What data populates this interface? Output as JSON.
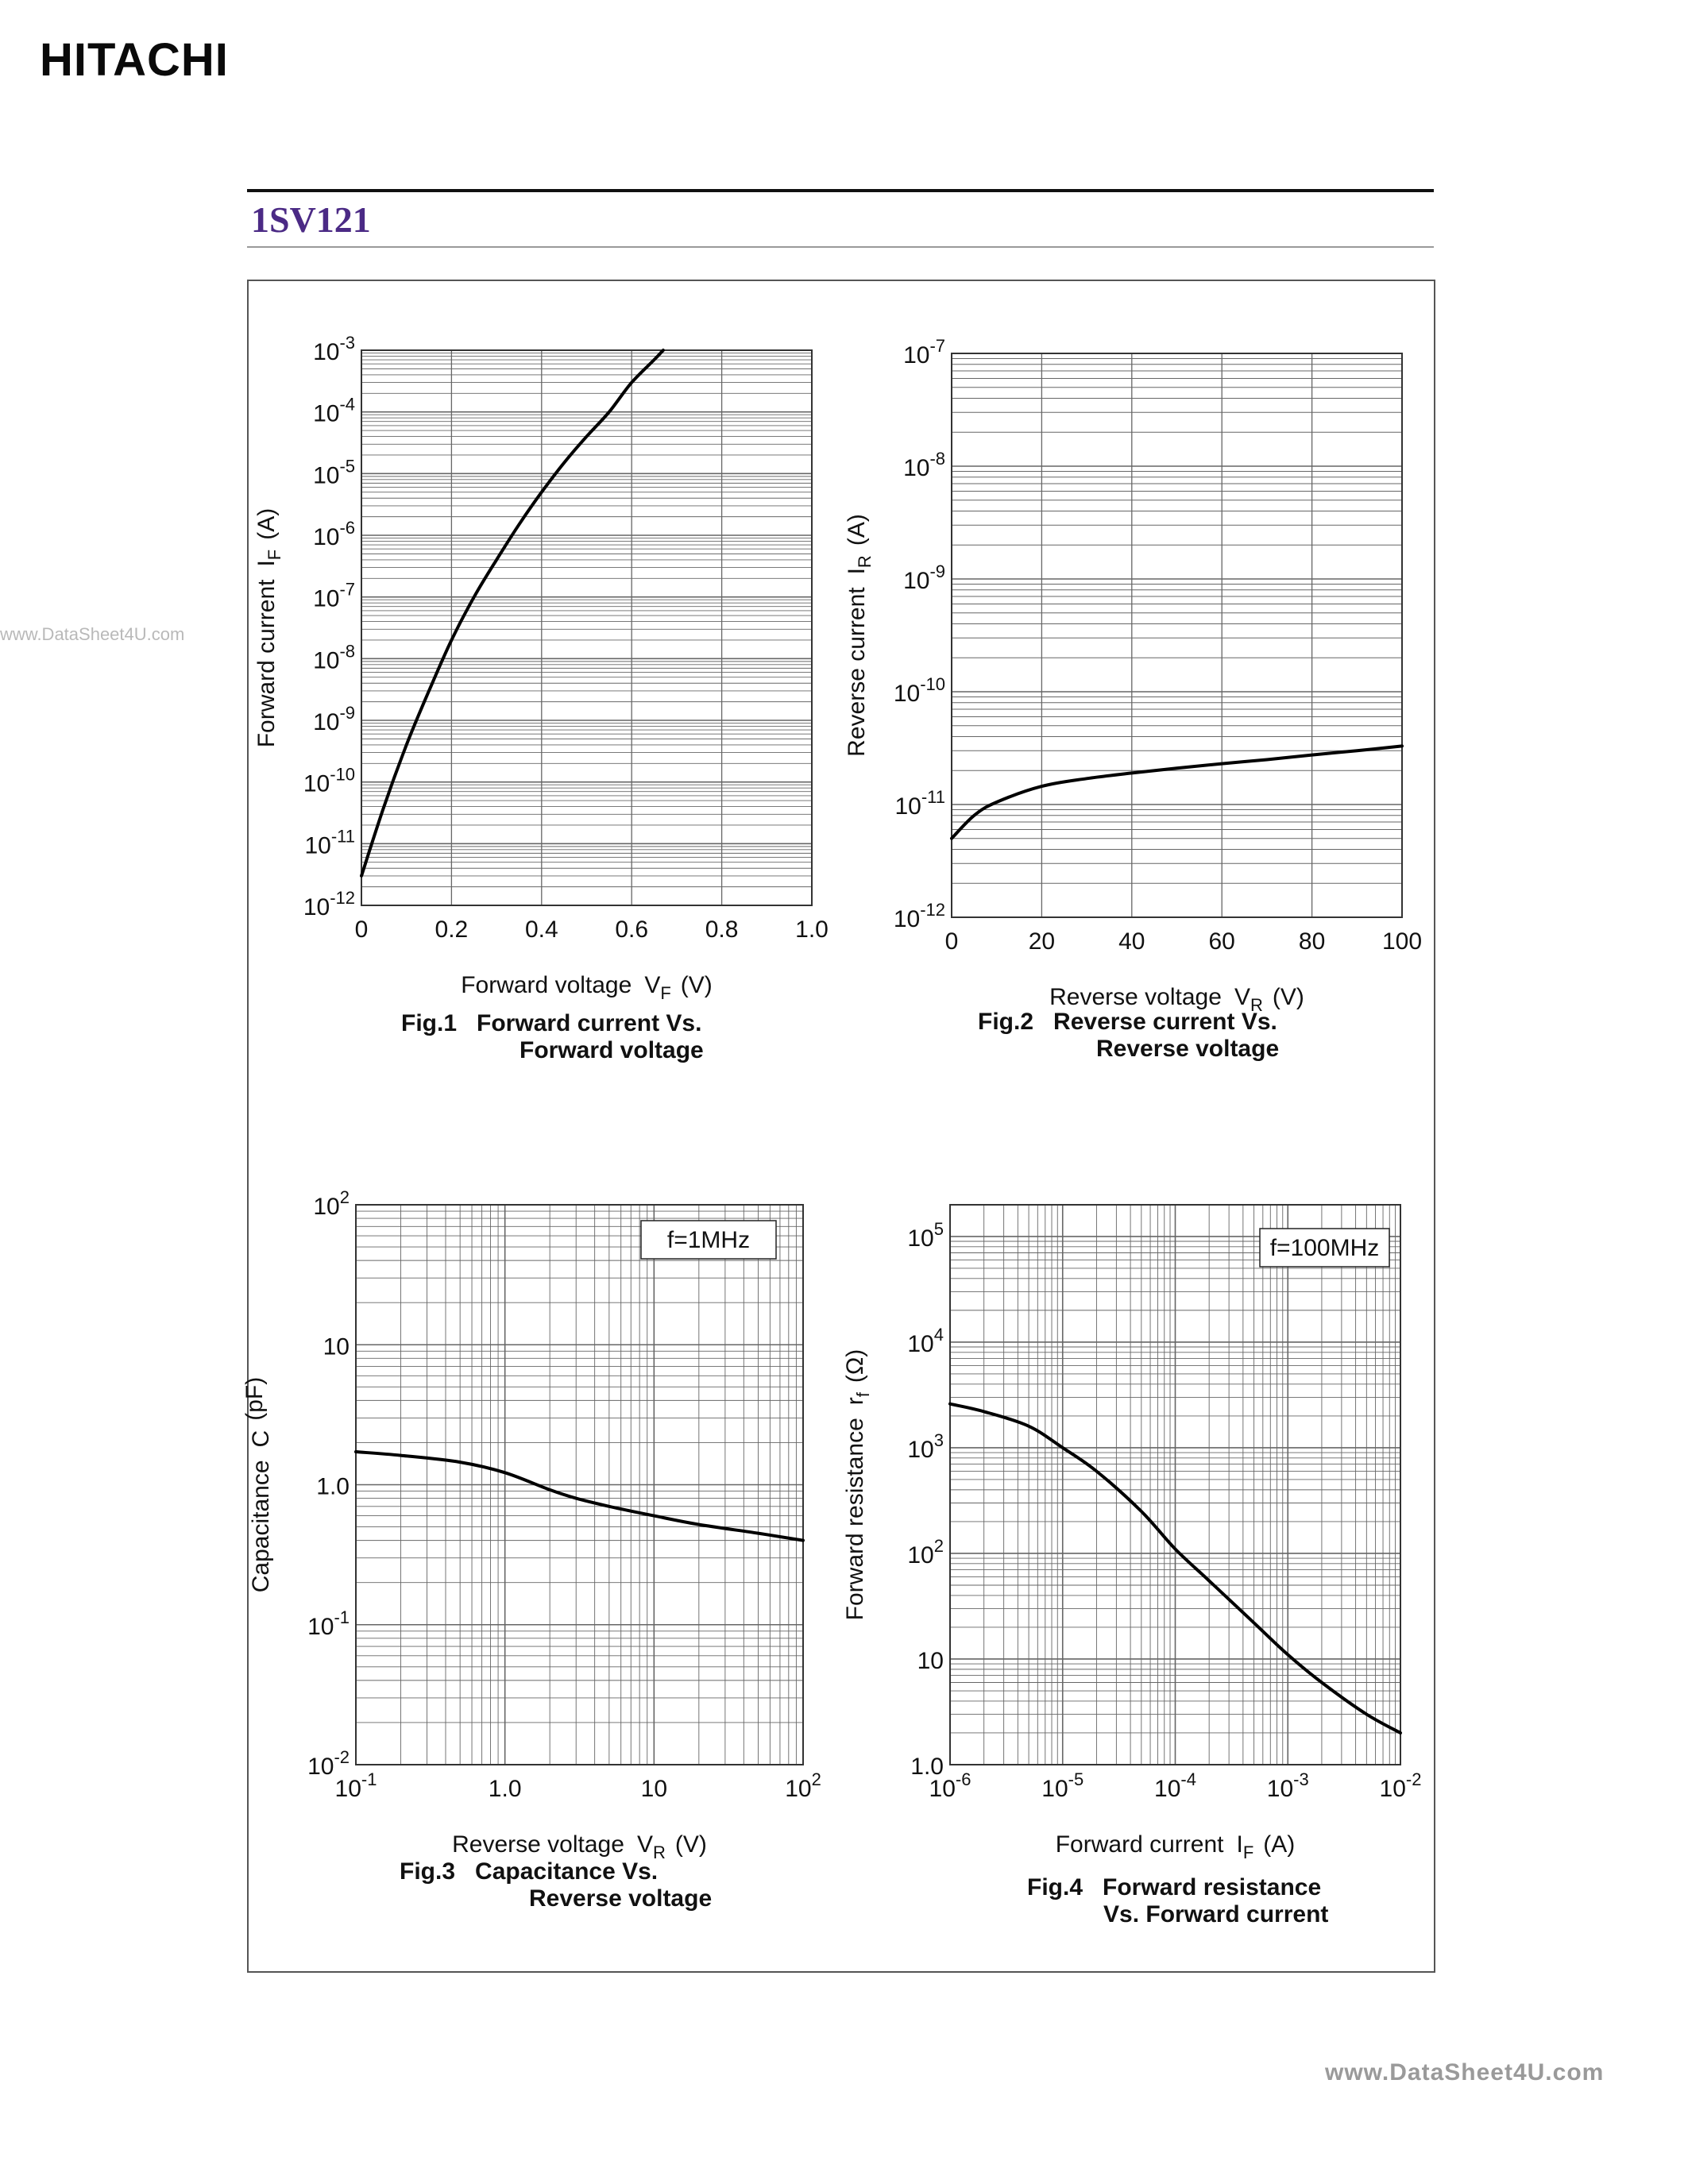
{
  "header": {
    "brand": "HITACHI",
    "part_number": "1SV121",
    "watermark_left": "www.DataSheet4U.com",
    "watermark_right": "www.DataSheet4U.com"
  },
  "colors": {
    "part_number": "#4b2a85",
    "curve": "#000000",
    "grid": "#666666"
  },
  "captions": {
    "fig1": {
      "num": "Fig.1",
      "line1": "Forward current Vs.",
      "line2": "Forward voltage"
    },
    "fig2": {
      "num": "Fig.2",
      "line1": "Reverse current Vs.",
      "line2": "Reverse voltage"
    },
    "fig3": {
      "num": "Fig.3",
      "line1": "Capacitance Vs.",
      "line2": "Reverse voltage"
    },
    "fig4": {
      "num": "Fig.4",
      "line1": "Forward resistance",
      "line2": "Vs. Forward current"
    }
  },
  "chart_data": [
    {
      "id": "fig1",
      "type": "line",
      "title": "Forward current Vs. Forward voltage",
      "xlabel": "Forward voltage",
      "xsym": "V",
      "xsub": "F",
      "xunit": "(V)",
      "ylabel": "Forward current",
      "ysym": "I",
      "ysub": "F",
      "yunit": "(A)",
      "xscale": "linear",
      "yscale": "log",
      "xlim": [
        0,
        1.0
      ],
      "ylim": [
        -12,
        -3
      ],
      "xticks": [
        0,
        0.2,
        0.4,
        0.6,
        0.8,
        1.0
      ],
      "xtick_labels": [
        "0",
        "0.2",
        "0.4",
        "0.6",
        "0.8",
        "1.0"
      ],
      "yticks": [
        -12,
        -11,
        -10,
        -9,
        -8,
        -7,
        -6,
        -5,
        -4,
        -3
      ],
      "ytick_labels": [
        {
          "base": "10",
          "exp": "-12"
        },
        {
          "base": "10",
          "exp": "-11"
        },
        {
          "base": "10",
          "exp": "-10"
        },
        {
          "base": "10",
          "exp": "-9"
        },
        {
          "base": "10",
          "exp": "-8"
        },
        {
          "base": "10",
          "exp": "-7"
        },
        {
          "base": "10",
          "exp": "-6"
        },
        {
          "base": "10",
          "exp": "-5"
        },
        {
          "base": "10",
          "exp": "-4"
        },
        {
          "base": "10",
          "exp": "-3"
        }
      ],
      "series": [
        {
          "name": "IF",
          "x": [
            0.0,
            0.05,
            0.1,
            0.15,
            0.2,
            0.25,
            0.3,
            0.35,
            0.4,
            0.45,
            0.5,
            0.55,
            0.6,
            0.65,
            0.67
          ],
          "y": [
            3e-12,
            4e-11,
            4e-10,
            3e-09,
            2e-08,
            1e-07,
            4e-07,
            1.5e-06,
            5e-06,
            1.5e-05,
            4e-05,
            0.0001,
            0.0003,
            0.0007,
            0.001
          ]
        }
      ]
    },
    {
      "id": "fig2",
      "type": "line",
      "title": "Reverse current Vs. Reverse voltage",
      "xlabel": "Reverse voltage",
      "xsym": "V",
      "xsub": "R",
      "xunit": "(V)",
      "ylabel": "Reverse current",
      "ysym": "I",
      "ysub": "R",
      "yunit": "(A)",
      "xscale": "linear",
      "yscale": "log",
      "xlim": [
        0,
        100
      ],
      "ylim": [
        -12,
        -7
      ],
      "xticks": [
        0,
        20,
        40,
        60,
        80,
        100
      ],
      "xtick_labels": [
        "0",
        "20",
        "40",
        "60",
        "80",
        "100"
      ],
      "yticks": [
        -12,
        -11,
        -10,
        -9,
        -8,
        -7
      ],
      "ytick_labels": [
        {
          "base": "10",
          "exp": "-12"
        },
        {
          "base": "10",
          "exp": "-11"
        },
        {
          "base": "10",
          "exp": "-10"
        },
        {
          "base": "10",
          "exp": "-9"
        },
        {
          "base": "10",
          "exp": "-8"
        },
        {
          "base": "10",
          "exp": "-7"
        }
      ],
      "series": [
        {
          "name": "IR",
          "x": [
            0,
            5,
            10,
            20,
            30,
            40,
            50,
            60,
            70,
            80,
            90,
            100
          ],
          "y": [
            5e-12,
            8e-12,
            1.05e-11,
            1.45e-11,
            1.7e-11,
            1.9e-11,
            2.1e-11,
            2.3e-11,
            2.5e-11,
            2.75e-11,
            3e-11,
            3.3e-11
          ]
        }
      ]
    },
    {
      "id": "fig3",
      "type": "line",
      "title": "Capacitance Vs. Reverse voltage",
      "xlabel": "Reverse voltage",
      "xsym": "V",
      "xsub": "R",
      "xunit": "(V)",
      "ylabel": "Capacitance",
      "ysym": "C",
      "ysub": "",
      "yunit": "(pF)",
      "xscale": "log",
      "yscale": "log",
      "xlim": [
        -1,
        2
      ],
      "ylim": [
        -2,
        2
      ],
      "annotation": "f=1MHz",
      "xticks": [
        -1,
        0,
        1,
        2
      ],
      "xtick_labels": [
        {
          "base": "10",
          "exp": "-1"
        },
        {
          "base": "1.0",
          "exp": ""
        },
        {
          "base": "10",
          "exp": ""
        },
        {
          "base": "10",
          "exp": "2"
        }
      ],
      "yticks": [
        -2,
        -1,
        0,
        1,
        2
      ],
      "ytick_labels": [
        {
          "base": "10",
          "exp": "-2"
        },
        {
          "base": "10",
          "exp": "-1"
        },
        {
          "base": "1.0",
          "exp": ""
        },
        {
          "base": "10",
          "exp": ""
        },
        {
          "base": "10",
          "exp": "2"
        }
      ],
      "series": [
        {
          "name": "C",
          "x": [
            0.1,
            0.2,
            0.5,
            1.0,
            2.0,
            3.0,
            5.0,
            10,
            20,
            50,
            100
          ],
          "y": [
            1.72,
            1.62,
            1.45,
            1.22,
            0.92,
            0.8,
            0.7,
            0.6,
            0.52,
            0.45,
            0.4
          ]
        }
      ]
    },
    {
      "id": "fig4",
      "type": "line",
      "title": "Forward resistance Vs. Forward current",
      "xlabel": "Forward current",
      "xsym": "I",
      "xsub": "F",
      "xunit": "(A)",
      "ylabel": "Forward resistance",
      "ysym": "r",
      "ysub": "f",
      "yunit": "(Ω)",
      "xscale": "log",
      "yscale": "log",
      "xlim": [
        -6,
        -2
      ],
      "ylim": [
        0,
        5.3
      ],
      "annotation": "f=100MHz",
      "xticks": [
        -6,
        -5,
        -4,
        -3,
        -2
      ],
      "xtick_labels": [
        {
          "base": "10",
          "exp": "-6"
        },
        {
          "base": "10",
          "exp": "-5"
        },
        {
          "base": "10",
          "exp": "-4"
        },
        {
          "base": "10",
          "exp": "-3"
        },
        {
          "base": "10",
          "exp": "-2"
        }
      ],
      "yticks": [
        0,
        1,
        2,
        3,
        4,
        5
      ],
      "ytick_labels": [
        {
          "base": "1.0",
          "exp": ""
        },
        {
          "base": "10",
          "exp": ""
        },
        {
          "base": "10",
          "exp": "2"
        },
        {
          "base": "10",
          "exp": "3"
        },
        {
          "base": "10",
          "exp": "4"
        },
        {
          "base": "10",
          "exp": "5"
        }
      ],
      "series": [
        {
          "name": "rf",
          "x": [
            1e-06,
            2e-06,
            5e-06,
            1e-05,
            2e-05,
            5e-05,
            0.0001,
            0.0002,
            0.0005,
            0.001,
            0.002,
            0.005,
            0.01
          ],
          "y": [
            2600,
            2200,
            1600,
            1000,
            600,
            250,
            110,
            55,
            22,
            11,
            6,
            3,
            2
          ]
        }
      ]
    }
  ]
}
